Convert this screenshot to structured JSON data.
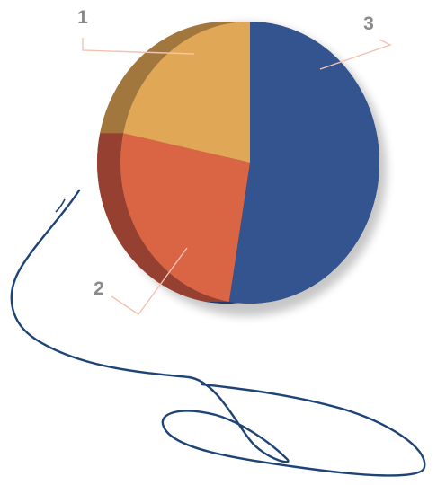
{
  "chart_data": {
    "type": "pie",
    "style": "3d",
    "slices": [
      {
        "label": "1",
        "value": 21,
        "color": "#E0A756",
        "side_color": "#A2773E"
      },
      {
        "label": "2",
        "value": 25,
        "color": "#D96545",
        "side_color": "#954030"
      },
      {
        "label": "3",
        "value": 51,
        "color": "#33548E",
        "side_color": "#1F3C6C"
      }
    ],
    "leader_line_color": "#F2C2B2",
    "decoration": {
      "name": "blue-string",
      "color": "#1E4476"
    }
  }
}
